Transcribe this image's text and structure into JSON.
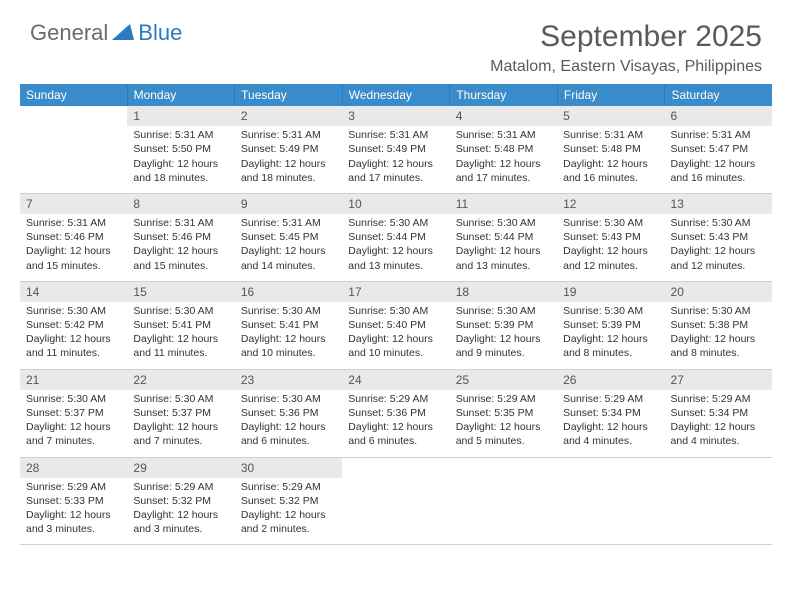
{
  "logo": {
    "word1": "General",
    "word2": "Blue"
  },
  "colors": {
    "headerBar": "#3a8bc9",
    "headerBarBorder": "#2a7bbf",
    "dayNumBg": "#e9e9e9",
    "cellBorder": "#d0d0d0",
    "textDark": "#333333",
    "textMuted": "#5a5a5a",
    "logoBlue": "#2a7bbf",
    "logoGray": "#6b6b6b"
  },
  "title": "September 2025",
  "location": "Matalom, Eastern Visayas, Philippines",
  "weekdays": [
    "Sunday",
    "Monday",
    "Tuesday",
    "Wednesday",
    "Thursday",
    "Friday",
    "Saturday"
  ],
  "weeks": [
    [
      {
        "empty": true
      },
      {
        "num": "1",
        "sunrise": "Sunrise: 5:31 AM",
        "sunset": "Sunset: 5:50 PM",
        "day1": "Daylight: 12 hours",
        "day2": "and 18 minutes."
      },
      {
        "num": "2",
        "sunrise": "Sunrise: 5:31 AM",
        "sunset": "Sunset: 5:49 PM",
        "day1": "Daylight: 12 hours",
        "day2": "and 18 minutes."
      },
      {
        "num": "3",
        "sunrise": "Sunrise: 5:31 AM",
        "sunset": "Sunset: 5:49 PM",
        "day1": "Daylight: 12 hours",
        "day2": "and 17 minutes."
      },
      {
        "num": "4",
        "sunrise": "Sunrise: 5:31 AM",
        "sunset": "Sunset: 5:48 PM",
        "day1": "Daylight: 12 hours",
        "day2": "and 17 minutes."
      },
      {
        "num": "5",
        "sunrise": "Sunrise: 5:31 AM",
        "sunset": "Sunset: 5:48 PM",
        "day1": "Daylight: 12 hours",
        "day2": "and 16 minutes."
      },
      {
        "num": "6",
        "sunrise": "Sunrise: 5:31 AM",
        "sunset": "Sunset: 5:47 PM",
        "day1": "Daylight: 12 hours",
        "day2": "and 16 minutes."
      }
    ],
    [
      {
        "num": "7",
        "sunrise": "Sunrise: 5:31 AM",
        "sunset": "Sunset: 5:46 PM",
        "day1": "Daylight: 12 hours",
        "day2": "and 15 minutes."
      },
      {
        "num": "8",
        "sunrise": "Sunrise: 5:31 AM",
        "sunset": "Sunset: 5:46 PM",
        "day1": "Daylight: 12 hours",
        "day2": "and 15 minutes."
      },
      {
        "num": "9",
        "sunrise": "Sunrise: 5:31 AM",
        "sunset": "Sunset: 5:45 PM",
        "day1": "Daylight: 12 hours",
        "day2": "and 14 minutes."
      },
      {
        "num": "10",
        "sunrise": "Sunrise: 5:30 AM",
        "sunset": "Sunset: 5:44 PM",
        "day1": "Daylight: 12 hours",
        "day2": "and 13 minutes."
      },
      {
        "num": "11",
        "sunrise": "Sunrise: 5:30 AM",
        "sunset": "Sunset: 5:44 PM",
        "day1": "Daylight: 12 hours",
        "day2": "and 13 minutes."
      },
      {
        "num": "12",
        "sunrise": "Sunrise: 5:30 AM",
        "sunset": "Sunset: 5:43 PM",
        "day1": "Daylight: 12 hours",
        "day2": "and 12 minutes."
      },
      {
        "num": "13",
        "sunrise": "Sunrise: 5:30 AM",
        "sunset": "Sunset: 5:43 PM",
        "day1": "Daylight: 12 hours",
        "day2": "and 12 minutes."
      }
    ],
    [
      {
        "num": "14",
        "sunrise": "Sunrise: 5:30 AM",
        "sunset": "Sunset: 5:42 PM",
        "day1": "Daylight: 12 hours",
        "day2": "and 11 minutes."
      },
      {
        "num": "15",
        "sunrise": "Sunrise: 5:30 AM",
        "sunset": "Sunset: 5:41 PM",
        "day1": "Daylight: 12 hours",
        "day2": "and 11 minutes."
      },
      {
        "num": "16",
        "sunrise": "Sunrise: 5:30 AM",
        "sunset": "Sunset: 5:41 PM",
        "day1": "Daylight: 12 hours",
        "day2": "and 10 minutes."
      },
      {
        "num": "17",
        "sunrise": "Sunrise: 5:30 AM",
        "sunset": "Sunset: 5:40 PM",
        "day1": "Daylight: 12 hours",
        "day2": "and 10 minutes."
      },
      {
        "num": "18",
        "sunrise": "Sunrise: 5:30 AM",
        "sunset": "Sunset: 5:39 PM",
        "day1": "Daylight: 12 hours",
        "day2": "and 9 minutes."
      },
      {
        "num": "19",
        "sunrise": "Sunrise: 5:30 AM",
        "sunset": "Sunset: 5:39 PM",
        "day1": "Daylight: 12 hours",
        "day2": "and 8 minutes."
      },
      {
        "num": "20",
        "sunrise": "Sunrise: 5:30 AM",
        "sunset": "Sunset: 5:38 PM",
        "day1": "Daylight: 12 hours",
        "day2": "and 8 minutes."
      }
    ],
    [
      {
        "num": "21",
        "sunrise": "Sunrise: 5:30 AM",
        "sunset": "Sunset: 5:37 PM",
        "day1": "Daylight: 12 hours",
        "day2": "and 7 minutes."
      },
      {
        "num": "22",
        "sunrise": "Sunrise: 5:30 AM",
        "sunset": "Sunset: 5:37 PM",
        "day1": "Daylight: 12 hours",
        "day2": "and 7 minutes."
      },
      {
        "num": "23",
        "sunrise": "Sunrise: 5:30 AM",
        "sunset": "Sunset: 5:36 PM",
        "day1": "Daylight: 12 hours",
        "day2": "and 6 minutes."
      },
      {
        "num": "24",
        "sunrise": "Sunrise: 5:29 AM",
        "sunset": "Sunset: 5:36 PM",
        "day1": "Daylight: 12 hours",
        "day2": "and 6 minutes."
      },
      {
        "num": "25",
        "sunrise": "Sunrise: 5:29 AM",
        "sunset": "Sunset: 5:35 PM",
        "day1": "Daylight: 12 hours",
        "day2": "and 5 minutes."
      },
      {
        "num": "26",
        "sunrise": "Sunrise: 5:29 AM",
        "sunset": "Sunset: 5:34 PM",
        "day1": "Daylight: 12 hours",
        "day2": "and 4 minutes."
      },
      {
        "num": "27",
        "sunrise": "Sunrise: 5:29 AM",
        "sunset": "Sunset: 5:34 PM",
        "day1": "Daylight: 12 hours",
        "day2": "and 4 minutes."
      }
    ],
    [
      {
        "num": "28",
        "sunrise": "Sunrise: 5:29 AM",
        "sunset": "Sunset: 5:33 PM",
        "day1": "Daylight: 12 hours",
        "day2": "and 3 minutes."
      },
      {
        "num": "29",
        "sunrise": "Sunrise: 5:29 AM",
        "sunset": "Sunset: 5:32 PM",
        "day1": "Daylight: 12 hours",
        "day2": "and 3 minutes."
      },
      {
        "num": "30",
        "sunrise": "Sunrise: 5:29 AM",
        "sunset": "Sunset: 5:32 PM",
        "day1": "Daylight: 12 hours",
        "day2": "and 2 minutes."
      },
      {
        "empty": true
      },
      {
        "empty": true
      },
      {
        "empty": true
      },
      {
        "empty": true
      }
    ]
  ]
}
